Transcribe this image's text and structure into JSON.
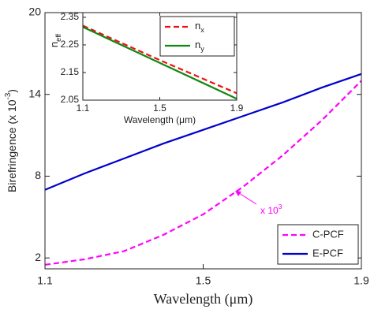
{
  "chart_data": [
    {
      "type": "line",
      "xlabel": "Wavelength (μm)",
      "ylabel": [
        "Birefringence (x 10",
        "-3",
        ")"
      ],
      "x": [
        1.1,
        1.2,
        1.3,
        1.4,
        1.5,
        1.6,
        1.7,
        1.8,
        1.9
      ],
      "series": [
        {
          "name": "C-PCF",
          "color": "#ff00ff",
          "linestyle": "--",
          "values": [
            1.5,
            1.9,
            2.5,
            3.7,
            5.2,
            7.2,
            9.5,
            12.1,
            15.0
          ]
        },
        {
          "name": "E-PCF",
          "color": "#0000cc",
          "linestyle": "-",
          "values": [
            7.0,
            8.2,
            9.3,
            10.4,
            11.4,
            12.4,
            13.4,
            14.5,
            15.5
          ]
        }
      ],
      "annotation": [
        "x 10",
        "3"
      ],
      "xlim": [
        1.1,
        1.9
      ],
      "xticks": [
        1.1,
        1.5,
        1.9
      ],
      "ylim": [
        1.2,
        20
      ],
      "yticks": [
        2,
        8,
        14,
        20
      ],
      "legend": "lower right"
    },
    {
      "type": "line",
      "xlabel": "Wavelength (μm)",
      "ylabel": [
        "n",
        "eff"
      ],
      "x": [
        1.1,
        1.5,
        1.9
      ],
      "series": [
        {
          "name": [
            "n",
            "x"
          ],
          "color": "#ee1111",
          "linestyle": "--",
          "values": [
            2.32,
            2.195,
            2.075
          ]
        },
        {
          "name": [
            "n",
            "y"
          ],
          "color": "#118811",
          "linestyle": "-",
          "values": [
            2.315,
            2.185,
            2.055
          ]
        }
      ],
      "xlim": [
        1.1,
        1.9
      ],
      "xticks": [
        1.1,
        1.5,
        1.9
      ],
      "ylim": [
        2.05,
        2.367
      ],
      "yticks": [
        2.05,
        2.15,
        2.25,
        2.35
      ],
      "legend": "upper right"
    }
  ]
}
